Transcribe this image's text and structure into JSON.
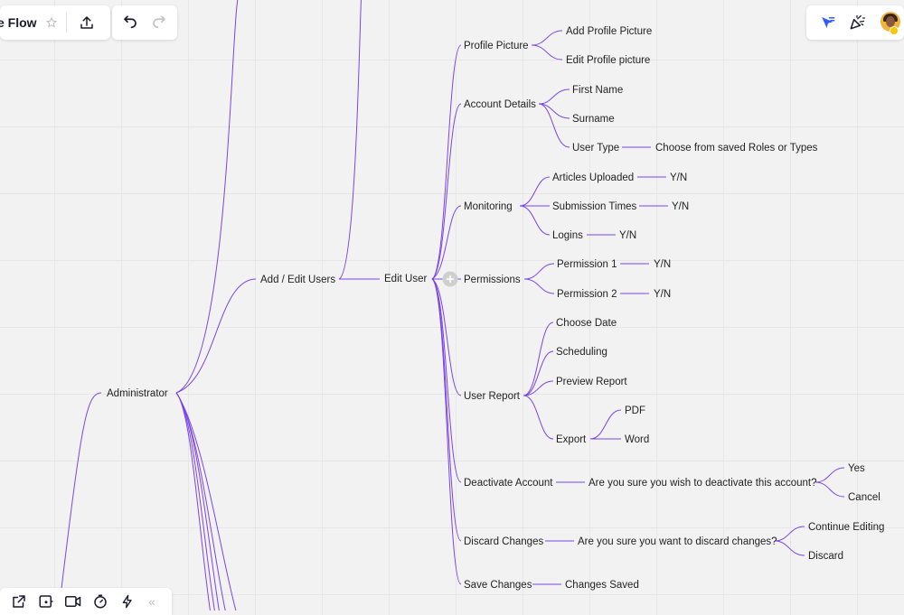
{
  "board": {
    "title": "e Flow"
  },
  "icons": {
    "star": "star-icon",
    "share": "upload-icon",
    "undo": "undo-icon",
    "redo": "redo-icon",
    "cursor": "cursor-flag-icon",
    "celebrate": "party-popper-icon",
    "external": "open-external-icon",
    "screen": "screen-share-icon",
    "video": "video-camera-icon",
    "timer": "timer-icon",
    "bolt": "lightning-icon",
    "collapse": "double-chevron-left-icon",
    "add_node": "plus-icon"
  },
  "colors": {
    "accent": "#7b45e8",
    "canvas": "#f2f2f2",
    "grid": "#e6e6e6"
  },
  "mindmap": {
    "root": "Administrator",
    "add_edit_users": "Add / Edit Users",
    "edit_user": "Edit User",
    "profile_picture": {
      "label": "Profile Picture",
      "children": [
        "Add Profile Picture",
        "Edit Profile picture"
      ]
    },
    "account_details": {
      "label": "Account Details",
      "first_name": "First Name",
      "surname": "Surname",
      "user_type": "User Type",
      "user_type_child": "Choose from saved Roles or Types"
    },
    "monitoring": {
      "label": "Monitoring",
      "articles": "Articles Uploaded",
      "articles_val": "Y/N",
      "submission": "Submission Times",
      "submission_val": "Y/N",
      "logins": "Logins",
      "logins_val": "Y/N"
    },
    "permissions": {
      "label": "Permissions",
      "p1": "Permission 1",
      "p1_val": "Y/N",
      "p2": "Permission 2",
      "p2_val": "Y/N"
    },
    "user_report": {
      "label": "User Report",
      "choose_date": "Choose Date",
      "scheduling": "Scheduling",
      "preview": "Preview Report",
      "export": "Export",
      "pdf": "PDF",
      "word": "Word"
    },
    "deactivate": {
      "label": "Deactivate Account",
      "question": "Are you sure you wish to deactivate this account?",
      "yes": "Yes",
      "cancel": "Cancel"
    },
    "discard": {
      "label": "Discard Changes",
      "question": "Are you sure you want to discard changes?",
      "continue": "Continue Editing",
      "discard": "Discard"
    },
    "save": {
      "label": "Save Changes",
      "saved": "Changes Saved"
    }
  }
}
